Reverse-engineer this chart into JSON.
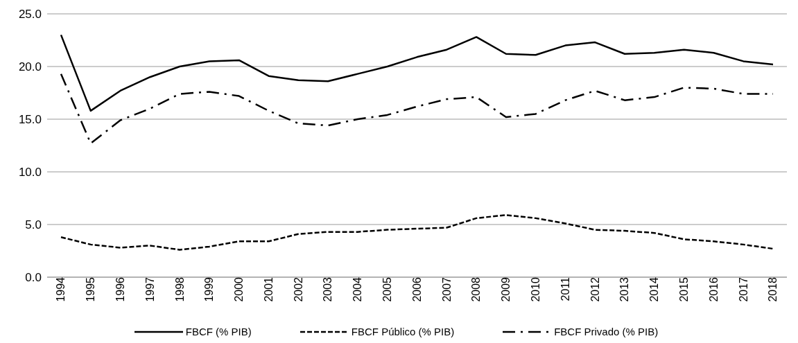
{
  "chart_data": {
    "type": "line",
    "categories": [
      "1994",
      "1995",
      "1996",
      "1997",
      "1998",
      "1999",
      "2000",
      "2001",
      "2002",
      "2003",
      "2004",
      "2005",
      "2006",
      "2007",
      "2008",
      "2009",
      "2010",
      "2011",
      "2012",
      "2013",
      "2014",
      "2015",
      "2016",
      "2017",
      "2018"
    ],
    "series": [
      {
        "name": "FBCF (% PIB)",
        "color": "#000000",
        "line_style": "solid",
        "values": [
          23.0,
          15.8,
          17.7,
          19.0,
          20.0,
          20.5,
          20.6,
          19.1,
          18.7,
          18.6,
          19.3,
          20.0,
          20.9,
          21.6,
          22.8,
          21.2,
          21.1,
          22.0,
          22.3,
          21.2,
          21.3,
          21.6,
          21.3,
          20.5,
          20.2
        ]
      },
      {
        "name": "FBCF Público (% PIB)",
        "color": "#000000",
        "line_style": "dashed",
        "values": [
          3.8,
          3.1,
          2.8,
          3.0,
          2.6,
          2.9,
          3.4,
          3.4,
          4.1,
          4.3,
          4.3,
          4.5,
          4.6,
          4.7,
          5.6,
          5.9,
          5.6,
          5.1,
          4.5,
          4.4,
          4.2,
          3.6,
          3.4,
          3.1,
          2.7
        ]
      },
      {
        "name": "FBCF Privado (% PIB)",
        "color": "#000000",
        "line_style": "dashdot",
        "values": [
          19.3,
          12.7,
          14.9,
          16.0,
          17.4,
          17.6,
          17.2,
          15.8,
          14.6,
          14.4,
          15.0,
          15.4,
          16.2,
          16.9,
          17.1,
          15.2,
          15.5,
          16.8,
          17.7,
          16.8,
          17.1,
          18.0,
          17.9,
          17.4,
          17.4
        ]
      }
    ],
    "ylim": [
      0,
      25
    ],
    "yticks": [
      {
        "value": 0,
        "label": "0.0"
      },
      {
        "value": 5,
        "label": "5.0"
      },
      {
        "value": 10,
        "label": "10.0"
      },
      {
        "value": 15,
        "label": "15.0"
      },
      {
        "value": 20,
        "label": "20.0"
      },
      {
        "value": 25,
        "label": "25.0"
      }
    ],
    "grid": "y",
    "legend": "bottom",
    "marker": "none"
  }
}
